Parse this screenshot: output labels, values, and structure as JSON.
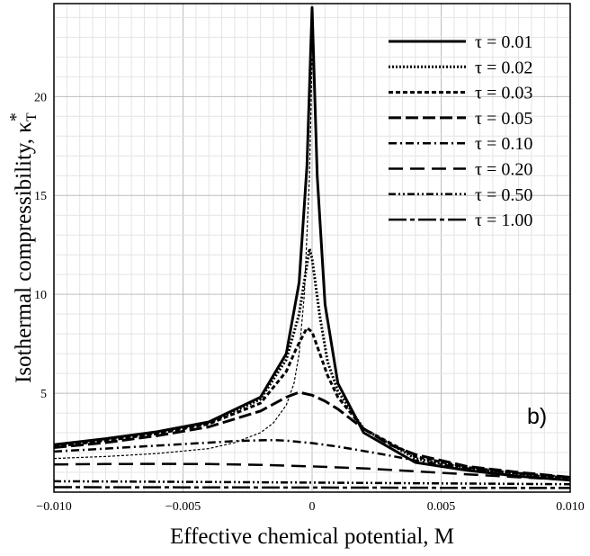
{
  "chart_data": {
    "type": "line",
    "title": "",
    "xlabel": "Effective chemical potential, M",
    "ylabel": "Isothermal compressibility, κ",
    "ylabel_sup": "*",
    "ylabel_sub": "T",
    "annotation": "b)",
    "xlim": [
      -0.01,
      0.01
    ],
    "ylim": [
      0,
      24.7
    ],
    "x_ticks": [
      -0.01,
      -0.005,
      0,
      0.005,
      0.01
    ],
    "x_tick_labels": [
      "−0.010",
      "−0.005",
      "0",
      "0.005",
      "0.010"
    ],
    "y_ticks": [
      5,
      10,
      15,
      20
    ],
    "y_tick_labels": [
      "5",
      "10",
      "15",
      "20"
    ],
    "grid": true,
    "legend_position": "top-right",
    "series": [
      {
        "name": "τ = 0.01",
        "dash": "solid",
        "width": 3,
        "x": [
          -0.01,
          -0.008,
          -0.006,
          -0.004,
          -0.002,
          -0.001,
          -0.0005,
          -0.0002,
          0,
          0.0002,
          0.0005,
          0.001,
          0.002,
          0.004,
          0.006,
          0.008,
          0.01
        ],
        "y": [
          2.4,
          2.7,
          3.05,
          3.55,
          4.8,
          7.0,
          10.6,
          16.5,
          24.5,
          16.0,
          9.5,
          5.5,
          3.0,
          1.5,
          1.1,
          0.8,
          0.6
        ]
      },
      {
        "name": "τ = 0.02",
        "dash": "dotted",
        "width": 3,
        "x": [
          -0.01,
          -0.008,
          -0.006,
          -0.004,
          -0.002,
          -0.001,
          -0.0005,
          -0.0002,
          -0.0001,
          0,
          0.0003,
          0.0006,
          0.001,
          0.002,
          0.004,
          0.006,
          0.008,
          0.01
        ],
        "y": [
          2.35,
          2.65,
          3.0,
          3.5,
          4.7,
          6.7,
          9.0,
          11.5,
          12.3,
          11.8,
          8.9,
          6.6,
          5.1,
          3.2,
          1.7,
          1.2,
          0.9,
          0.65
        ]
      },
      {
        "name": "τ = 0.03",
        "dash": "short-dash",
        "width": 3,
        "x": [
          -0.01,
          -0.008,
          -0.006,
          -0.004,
          -0.002,
          -0.001,
          -0.0006,
          -0.0002,
          0,
          0.0003,
          0.0006,
          0.001,
          0.002,
          0.004,
          0.006,
          0.008,
          0.01
        ],
        "y": [
          2.3,
          2.6,
          2.95,
          3.45,
          4.5,
          6.1,
          7.3,
          8.3,
          8.1,
          7.0,
          5.9,
          4.8,
          3.2,
          1.8,
          1.25,
          0.95,
          0.7
        ]
      },
      {
        "name": "τ = 0.05",
        "dash": "long-dash",
        "width": 3,
        "x": [
          -0.01,
          -0.008,
          -0.006,
          -0.004,
          -0.002,
          -0.001,
          -0.0005,
          0,
          0.0005,
          0.001,
          0.002,
          0.003,
          0.004,
          0.006,
          0.008,
          0.01
        ],
        "y": [
          2.25,
          2.5,
          2.85,
          3.3,
          4.1,
          4.8,
          5.05,
          4.9,
          4.6,
          4.2,
          3.2,
          2.4,
          1.9,
          1.3,
          1.0,
          0.75
        ]
      },
      {
        "name": "τ = 0.10",
        "dash": "dash-dot",
        "width": 2.5,
        "x": [
          -0.01,
          -0.008,
          -0.006,
          -0.004,
          -0.003,
          -0.002,
          -0.0015,
          -0.001,
          0,
          0.001,
          0.002,
          0.003,
          0.004,
          0.006,
          0.008,
          0.01
        ],
        "y": [
          2.05,
          2.2,
          2.35,
          2.5,
          2.58,
          2.62,
          2.63,
          2.6,
          2.48,
          2.3,
          2.08,
          1.85,
          1.6,
          1.2,
          0.95,
          0.75
        ]
      },
      {
        "name": "τ = 0.20",
        "dash": "medium-dash",
        "width": 2.5,
        "x": [
          -0.01,
          -0.008,
          -0.006,
          -0.004,
          -0.002,
          0,
          0.002,
          0.004,
          0.006,
          0.008,
          0.01
        ],
        "y": [
          1.4,
          1.42,
          1.43,
          1.42,
          1.38,
          1.3,
          1.2,
          1.05,
          0.9,
          0.75,
          0.62
        ]
      },
      {
        "name": "τ = 0.50",
        "dash": "dash-dot-dot",
        "width": 2.5,
        "x": [
          -0.01,
          -0.005,
          0,
          0.005,
          0.01
        ],
        "y": [
          0.55,
          0.52,
          0.48,
          0.44,
          0.4
        ]
      },
      {
        "name": "τ = 1.00",
        "dash": "dash-long-dash",
        "width": 2.5,
        "x": [
          -0.01,
          -0.005,
          0,
          0.005,
          0.01
        ],
        "y": [
          0.25,
          0.24,
          0.23,
          0.22,
          0.21
        ]
      },
      {
        "name": "",
        "dash": "thin-dashed",
        "width": 1.2,
        "x": [
          -0.01,
          -0.008,
          -0.006,
          -0.004,
          -0.003,
          -0.002,
          -0.0015,
          -0.001,
          -0.0007,
          -0.0005,
          -0.0003,
          -0.0001,
          0
        ],
        "y": [
          1.7,
          1.8,
          1.95,
          2.2,
          2.5,
          3.0,
          3.5,
          4.4,
          5.5,
          7.0,
          10.0,
          16.0,
          22.0
        ]
      }
    ]
  }
}
